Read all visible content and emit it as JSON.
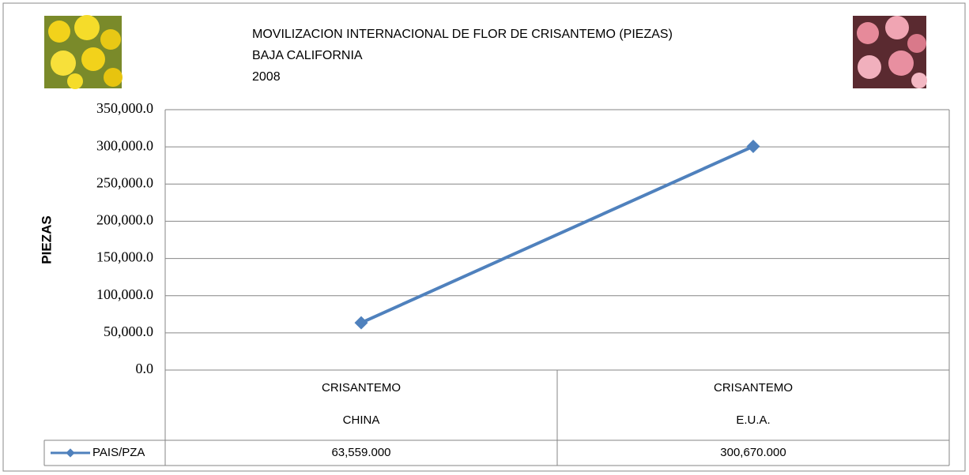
{
  "chart_data": {
    "type": "line",
    "title": [
      "MOVILIZACION INTERNACIONAL DE FLOR DE CRISANTEMO (PIEZAS)",
      "BAJA CALIFORNIA",
      "2008"
    ],
    "y_label": "PIEZAS",
    "categories": [
      [
        "CRISANTEMO",
        "CHINA"
      ],
      [
        "CRISANTEMO",
        "E.U.A."
      ]
    ],
    "series": [
      {
        "name": "PAIS/PZA",
        "color": "#4f81bd",
        "values": [
          63559,
          300670
        ],
        "value_labels": [
          "63,559.000",
          "300,670.000"
        ]
      }
    ],
    "ylim": [
      0,
      350000
    ],
    "yticks": [
      {
        "value": 0,
        "label": "0.0"
      },
      {
        "value": 50000,
        "label": "50,000.0"
      },
      {
        "value": 100000,
        "label": "100,000.0"
      },
      {
        "value": 150000,
        "label": "150,000.0"
      },
      {
        "value": 200000,
        "label": "200,000.0"
      },
      {
        "value": 250000,
        "label": "250,000.0"
      },
      {
        "value": 300000,
        "label": "300,000.0"
      },
      {
        "value": 350000,
        "label": "350,000.0"
      }
    ],
    "grid": true,
    "data_table": true
  }
}
